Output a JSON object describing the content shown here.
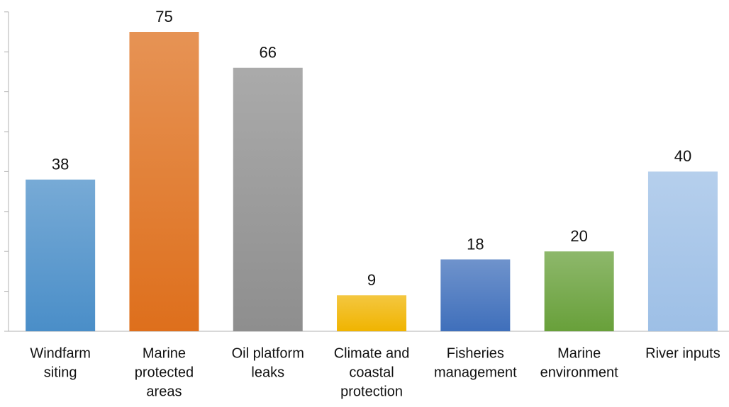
{
  "chart_data": {
    "type": "bar",
    "categories": [
      [
        "Windfarm",
        "siting"
      ],
      [
        "Marine",
        "protected",
        "areas"
      ],
      [
        "Oil platform",
        "leaks"
      ],
      [
        "Climate and",
        "coastal",
        "protection"
      ],
      [
        "Fisheries",
        "management"
      ],
      [
        "Marine",
        "environment"
      ],
      [
        "River inputs"
      ]
    ],
    "values": [
      38,
      75,
      66,
      9,
      18,
      20,
      40
    ],
    "colors": [
      "#4a8ec8",
      "#de6f1c",
      "#8e8e8e",
      "#f0b400",
      "#3f6fbb",
      "#68a03a",
      "#9dbfe6"
    ],
    "ylim": [
      0,
      80
    ],
    "yticks": [
      0,
      10,
      20,
      30,
      40,
      50,
      60,
      70,
      80
    ],
    "grid": false
  }
}
